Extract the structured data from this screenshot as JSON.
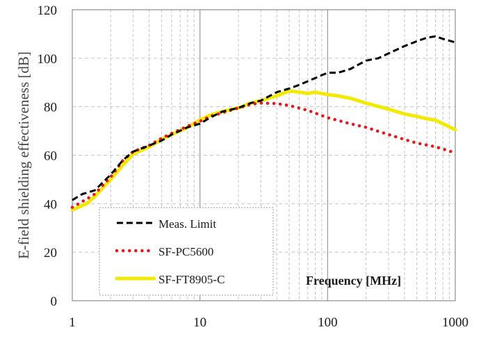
{
  "chart_data": {
    "type": "line",
    "xlabel": "Frequency [MHz]",
    "ylabel": "E-field shielding effectiveness [dB]",
    "xscale": "log",
    "xlim": [
      1,
      1000
    ],
    "ylim": [
      0,
      120
    ],
    "xticks": [
      "1",
      "10",
      "100",
      "1000"
    ],
    "yticks": [
      "0",
      "20",
      "40",
      "60",
      "80",
      "100",
      "120"
    ],
    "grid": true,
    "legend_position": "bottom-left",
    "series": [
      {
        "name": "Meas. Limit",
        "color": "#000000",
        "style": "dashed",
        "points": [
          [
            1,
            41.5
          ],
          [
            1.2,
            44
          ],
          [
            1.5,
            45.5
          ],
          [
            2,
            52
          ],
          [
            2.5,
            58
          ],
          [
            3,
            61.5
          ],
          [
            4,
            64
          ],
          [
            5,
            66
          ],
          [
            6,
            68.5
          ],
          [
            8,
            71.5
          ],
          [
            10,
            73
          ],
          [
            12,
            75.5
          ],
          [
            15,
            78
          ],
          [
            20,
            79.5
          ],
          [
            25,
            81.5
          ],
          [
            30,
            82.5
          ],
          [
            40,
            86
          ],
          [
            50,
            87.5
          ],
          [
            60,
            89
          ],
          [
            70,
            90.5
          ],
          [
            90,
            93
          ],
          [
            100,
            94
          ],
          [
            120,
            94
          ],
          [
            150,
            95.5
          ],
          [
            200,
            99
          ],
          [
            250,
            100
          ],
          [
            300,
            102
          ],
          [
            400,
            105
          ],
          [
            500,
            107
          ],
          [
            600,
            108.5
          ],
          [
            700,
            109
          ],
          [
            800,
            108
          ],
          [
            1000,
            106.5
          ]
        ]
      },
      {
        "name": "SF-PC5600",
        "color": "#e8171c",
        "style": "dotted",
        "points": [
          [
            1,
            38.5
          ],
          [
            1.3,
            42
          ],
          [
            1.5,
            44
          ],
          [
            2,
            51
          ],
          [
            2.5,
            58
          ],
          [
            3,
            61.5
          ],
          [
            4,
            64
          ],
          [
            5,
            67
          ],
          [
            6,
            69
          ],
          [
            8,
            72
          ],
          [
            10,
            74
          ],
          [
            12,
            76
          ],
          [
            15,
            77.5
          ],
          [
            20,
            79.5
          ],
          [
            25,
            81
          ],
          [
            30,
            81.5
          ],
          [
            40,
            81.3
          ],
          [
            50,
            80.5
          ],
          [
            70,
            78.5
          ],
          [
            100,
            75.5
          ],
          [
            150,
            73
          ],
          [
            200,
            71.5
          ],
          [
            300,
            68.5
          ],
          [
            400,
            66.5
          ],
          [
            500,
            65
          ],
          [
            700,
            63.5
          ],
          [
            1000,
            61
          ]
        ]
      },
      {
        "name": "SF-FT8905-C",
        "color": "#f2ea06",
        "style": "solid",
        "points": [
          [
            1,
            37.5
          ],
          [
            1.3,
            40
          ],
          [
            1.5,
            43
          ],
          [
            2,
            50
          ],
          [
            2.5,
            56
          ],
          [
            3,
            60.5
          ],
          [
            4,
            63.5
          ],
          [
            5,
            66.5
          ],
          [
            6,
            68.5
          ],
          [
            8,
            71.5
          ],
          [
            10,
            74.5
          ],
          [
            12,
            76.5
          ],
          [
            15,
            78
          ],
          [
            20,
            79.5
          ],
          [
            25,
            81.5
          ],
          [
            30,
            82.5
          ],
          [
            40,
            84.5
          ],
          [
            50,
            86.5
          ],
          [
            60,
            86
          ],
          [
            70,
            85.5
          ],
          [
            80,
            86
          ],
          [
            100,
            85
          ],
          [
            120,
            84.5
          ],
          [
            150,
            83.5
          ],
          [
            200,
            81.5
          ],
          [
            300,
            79
          ],
          [
            400,
            77
          ],
          [
            500,
            76
          ],
          [
            600,
            75
          ],
          [
            700,
            74.5
          ],
          [
            1000,
            70.5
          ]
        ]
      }
    ]
  }
}
